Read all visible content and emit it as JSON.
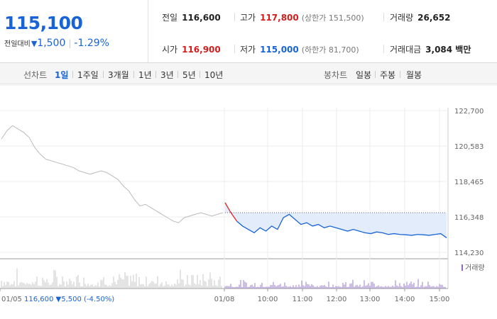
{
  "quote": {
    "price": "115,100",
    "change_label": "전일대비",
    "change_arrow": "▼",
    "change_amount": "1,500",
    "change_pct": "-1.29%",
    "prev_close_label": "전일",
    "prev_close": "116,600",
    "open_label": "시가",
    "open": "116,900",
    "high_label": "고가",
    "high": "117,800",
    "upper_limit": "(상한가 151,500)",
    "low_label": "저가",
    "low": "115,000",
    "lower_limit": "(하한가 81,700)",
    "volume_label": "거래량",
    "volume": "26,652",
    "amount_label": "거래대금",
    "amount": "3,084 백만"
  },
  "tabs": {
    "line_label": "선차트",
    "periods": [
      "1일",
      "1주일",
      "3개월",
      "1년",
      "3년",
      "5년",
      "10년"
    ],
    "active_period": "1일",
    "candle_label": "봉차트",
    "candles": [
      "일봉",
      "주봉",
      "월봉"
    ]
  },
  "chart_data": {
    "type": "line",
    "y_ticks": [
      "122,700",
      "120,583",
      "118,465",
      "116,348",
      "114,230"
    ],
    "ylim": [
      114230,
      122700
    ],
    "grid": true,
    "x_ticks": [
      "01/05",
      "01/08",
      "10:00",
      "11:00",
      "12:00",
      "13:00",
      "14:00",
      "15:00"
    ],
    "volume_label": "거래량",
    "series": [
      {
        "color": "#bbbbbb",
        "values": [
          121000,
          121500,
          121800,
          121600,
          121400,
          121100,
          120500,
          120100,
          119800,
          119700,
          119600,
          119500,
          119400,
          119300,
          119100,
          119000,
          118900,
          119000,
          119100,
          119000,
          118800,
          118600,
          118200,
          117900,
          117400,
          117000,
          117100,
          116900,
          116700,
          116500,
          116300,
          116100,
          116000,
          116300,
          116400,
          116500,
          116600,
          116500,
          116400,
          116500,
          116600
        ]
      },
      {
        "color": "#1863d6",
        "values": [
          117200,
          116600,
          116100,
          115800,
          115600,
          115400,
          115700,
          115500,
          115800,
          115600,
          116300,
          116500,
          116200,
          115900,
          116000,
          115800,
          115900,
          115700,
          115800,
          115700,
          115600,
          115500,
          115600,
          115500,
          115400,
          115350,
          115450,
          115400,
          115300,
          115350,
          115300,
          115280,
          115250,
          115300,
          115280,
          115250,
          115300,
          115350,
          115100
        ]
      }
    ],
    "previous_close": 116600,
    "footer": {
      "date": "01/05",
      "price": "116,600",
      "arrow": "▼",
      "change": "5,500",
      "pct": "(-4.50%)"
    }
  }
}
